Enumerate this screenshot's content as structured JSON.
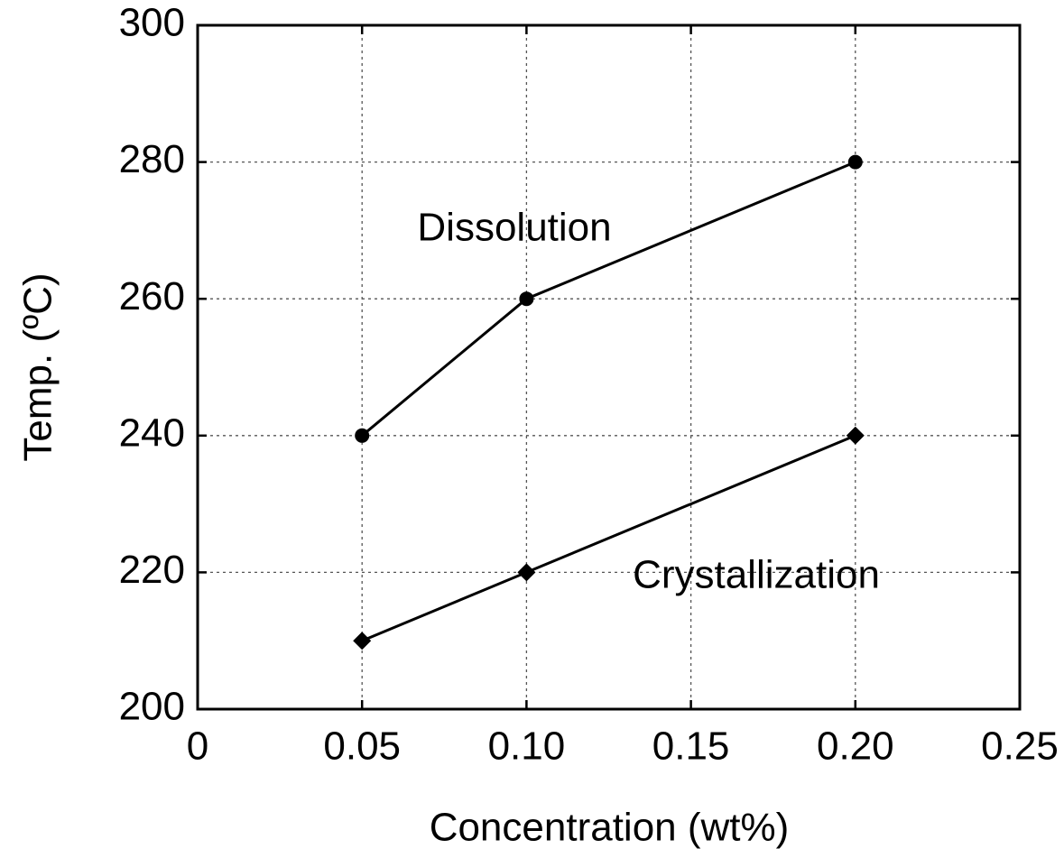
{
  "chart_data": {
    "type": "line",
    "x_label": "Concentration (wt%)",
    "y_label": "Temp. (ºC)",
    "x": [
      0.05,
      0.1,
      0.2
    ],
    "series": [
      {
        "name": "Dissolution",
        "color": "#000000",
        "marker": "circle",
        "values": [
          240,
          260,
          280
        ]
      },
      {
        "name": "Crystallization",
        "color": "#000000",
        "marker": "diamond",
        "values": [
          210,
          220,
          240
        ]
      }
    ],
    "xlim": [
      0,
      0.25
    ],
    "xticks": [
      0,
      0.05,
      {
        "value": 0.1,
        "label": "0.10"
      },
      0.15,
      {
        "value": 0.2,
        "label": "0.20"
      },
      0.25
    ],
    "ylim": [
      200,
      300
    ],
    "yticks": [
      200,
      220,
      240,
      260,
      280,
      300
    ],
    "grid": true
  }
}
